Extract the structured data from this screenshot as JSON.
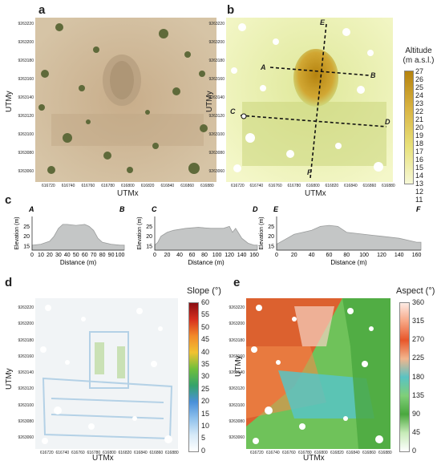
{
  "panels": {
    "a": {
      "letter": "a",
      "xlabel": "UTMx",
      "ylabel": "UTMy"
    },
    "b": {
      "letter": "b",
      "xlabel": "UTMx",
      "ylabel": "UTMy",
      "profile_labels": [
        "A",
        "B",
        "C",
        "D",
        "E",
        "F"
      ],
      "colorbar_title": "Altitude\n(m a.s.l.)"
    },
    "c": {
      "letter": "c"
    },
    "d": {
      "letter": "d",
      "xlabel": "UTMx",
      "ylabel": "UTMy",
      "colorbar_title": "Slope (°)"
    },
    "e": {
      "letter": "e",
      "xlabel": "UTMx",
      "ylabel": "UTMy",
      "colorbar_title": "Aspect (°)"
    }
  },
  "utm_y_ticks_top": [
    "9263220",
    "9263200",
    "9263180",
    "9263160",
    "9263140",
    "9263120",
    "9263100",
    "9263080",
    "9263060"
  ],
  "utm_y_ticks_bottom": [
    "9263220",
    "9263200",
    "9263180",
    "9263160",
    "9263140",
    "9263120",
    "9263100",
    "9263080",
    "9263060"
  ],
  "utm_x_ticks": [
    "616720",
    "616740",
    "616760",
    "616780",
    "616800",
    "616820",
    "616840",
    "616860",
    "616880"
  ],
  "altitude_ticks": [
    "27",
    "26",
    "25",
    "24",
    "23",
    "22",
    "21",
    "20",
    "19",
    "18",
    "17",
    "16",
    "15",
    "14",
    "13",
    "12",
    "11"
  ],
  "slope_ticks": [
    "60",
    "55",
    "50",
    "45",
    "40",
    "35",
    "30",
    "25",
    "20",
    "15",
    "10",
    "5",
    "0"
  ],
  "aspect_ticks": [
    "360",
    "315",
    "270",
    "225",
    "180",
    "135",
    "90",
    "45",
    "0"
  ],
  "colors": {
    "aerial_bg": "#cdb99a",
    "altitude_low": "#f5f7c0",
    "altitude_high": "#b5830f",
    "profile_fill": "#c4c6c6",
    "profile_stroke": "#9a9c9c"
  },
  "chart_data": [
    {
      "type": "area",
      "title": "",
      "start_label": "A",
      "end_label": "B",
      "xlabel": "Distance (m)",
      "ylabel": "Elevation (m)",
      "xticks": [
        "0",
        "10",
        "20",
        "30",
        "40",
        "50",
        "60",
        "70",
        "80",
        "90",
        "100"
      ],
      "yticks": [
        "15",
        "20",
        "25"
      ],
      "xlim": [
        0,
        105
      ],
      "ylim": [
        13,
        30
      ],
      "x": [
        0,
        10,
        20,
        25,
        30,
        35,
        40,
        50,
        60,
        65,
        70,
        75,
        80,
        90,
        100,
        105
      ],
      "y": [
        15.5,
        16,
        17.5,
        20,
        24,
        26,
        26,
        25.5,
        26,
        25,
        23,
        19,
        17,
        16,
        15.5,
        15.5
      ]
    },
    {
      "type": "area",
      "title": "",
      "start_label": "C",
      "end_label": "D",
      "xlabel": "Distance (m)",
      "ylabel": "Elevation (m)",
      "xticks": [
        "0",
        "20",
        "40",
        "60",
        "80",
        "100",
        "120",
        "140",
        "160"
      ],
      "yticks": [
        "15",
        "20",
        "25"
      ],
      "xlim": [
        0,
        165
      ],
      "ylim": [
        13,
        30
      ],
      "x": [
        0,
        5,
        10,
        15,
        20,
        30,
        50,
        70,
        90,
        110,
        120,
        125,
        130,
        140,
        150,
        160,
        165
      ],
      "y": [
        15.5,
        17,
        20,
        21,
        22,
        23,
        24,
        24.5,
        24,
        24,
        25,
        22,
        24,
        19,
        16.5,
        15.5,
        15.5
      ]
    },
    {
      "type": "area",
      "title": "",
      "start_label": "E",
      "end_label": "F",
      "xlabel": "Distance (m)",
      "ylabel": "Elevation (m)",
      "xticks": [
        "0",
        "20",
        "40",
        "60",
        "80",
        "100",
        "120",
        "140",
        "160"
      ],
      "yticks": [
        "15",
        "20",
        "25"
      ],
      "xlim": [
        0,
        165
      ],
      "ylim": [
        13,
        30
      ],
      "x": [
        0,
        10,
        20,
        30,
        40,
        50,
        60,
        70,
        80,
        90,
        100,
        110,
        120,
        130,
        140,
        150,
        160,
        165
      ],
      "y": [
        16,
        18.5,
        21,
        22,
        23,
        25,
        25.5,
        25,
        22,
        21.5,
        21,
        20.5,
        20,
        19.5,
        19,
        18,
        17,
        17
      ]
    }
  ]
}
